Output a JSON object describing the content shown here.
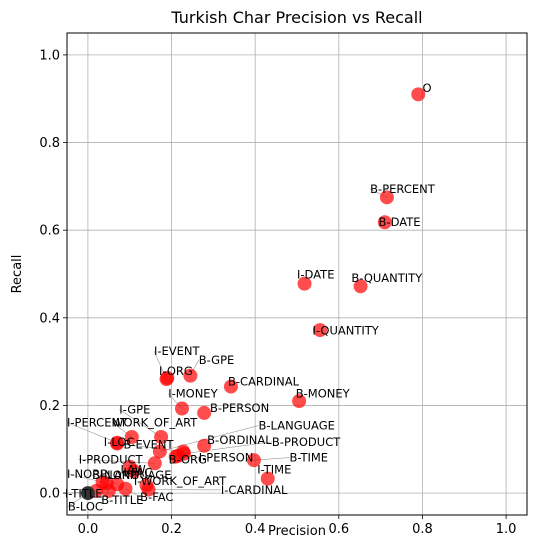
{
  "chart_data": {
    "type": "scatter",
    "title": "Turkish Char Precision vs Recall",
    "xlabel": "Precision",
    "ylabel": "Recall",
    "xlim": [
      -0.05,
      1.05
    ],
    "ylim": [
      -0.05,
      1.05
    ],
    "xticks": [
      "0.0",
      "0.2",
      "0.4",
      "0.6",
      "0.8",
      "1.0"
    ],
    "yticks": [
      "0.0",
      "0.2",
      "0.4",
      "0.6",
      "0.8",
      "1.0"
    ],
    "grid": true,
    "legend": "none",
    "colors": {
      "point": "#ff0000",
      "point_alpha": 0.7,
      "zero_point": "#333333",
      "grid": "#b0b0b0",
      "leader": "#999999"
    },
    "points": [
      {
        "label": "O",
        "x": 0.79,
        "y": 0.91,
        "lx": 0.8,
        "ly": 0.915
      },
      {
        "label": "B-PERCENT",
        "x": 0.715,
        "y": 0.675,
        "lx": 0.675,
        "ly": 0.685
      },
      {
        "label": "B-DATE",
        "x": 0.71,
        "y": 0.618,
        "lx": 0.695,
        "ly": 0.61
      },
      {
        "label": "I-DATE",
        "x": 0.518,
        "y": 0.478,
        "lx": 0.5,
        "ly": 0.49
      },
      {
        "label": "B-QUANTITY",
        "x": 0.652,
        "y": 0.472,
        "lx": 0.63,
        "ly": 0.482
      },
      {
        "label": "I-QUANTITY",
        "x": 0.555,
        "y": 0.372,
        "lx": 0.537,
        "ly": 0.362
      },
      {
        "label": "I-EVENT",
        "x": 0.188,
        "y": 0.26,
        "lx": 0.158,
        "ly": 0.315
      },
      {
        "label": "B-GPE",
        "x": 0.245,
        "y": 0.268,
        "lx": 0.265,
        "ly": 0.295
      },
      {
        "label": "I-ORG",
        "x": 0.19,
        "y": 0.263,
        "lx": 0.17,
        "ly": 0.27
      },
      {
        "label": "B-CARDINAL",
        "x": 0.342,
        "y": 0.243,
        "lx": 0.335,
        "ly": 0.245
      },
      {
        "label": "I-MONEY",
        "x": 0.225,
        "y": 0.193,
        "lx": 0.192,
        "ly": 0.218
      },
      {
        "label": "B-MONEY",
        "x": 0.505,
        "y": 0.21,
        "lx": 0.497,
        "ly": 0.218
      },
      {
        "label": "I-GPE",
        "x": 0.175,
        "y": 0.128,
        "lx": 0.075,
        "ly": 0.182
      },
      {
        "label": "B-PERSON",
        "x": 0.278,
        "y": 0.183,
        "lx": 0.292,
        "ly": 0.185
      },
      {
        "label": "I-PERCENT",
        "x": 0.07,
        "y": 0.115,
        "lx": -0.05,
        "ly": 0.152
      },
      {
        "label": "WORK_OF_ART",
        "x": 0.105,
        "y": 0.128,
        "lx": 0.058,
        "ly": 0.152
      },
      {
        "label": "B-LANGUAGE",
        "x": 0.172,
        "y": 0.095,
        "lx": 0.408,
        "ly": 0.145
      },
      {
        "label": "I-LOC",
        "x": 0.07,
        "y": 0.113,
        "lx": 0.038,
        "ly": 0.108
      },
      {
        "label": "B-EVENT",
        "x": 0.228,
        "y": 0.095,
        "lx": 0.085,
        "ly": 0.102
      },
      {
        "label": "B-ORDINAL",
        "x": 0.278,
        "y": 0.108,
        "lx": 0.285,
        "ly": 0.112
      },
      {
        "label": "B-PRODUCT",
        "x": 0.23,
        "y": 0.09,
        "lx": 0.44,
        "ly": 0.108
      },
      {
        "label": "B-ORG",
        "x": 0.21,
        "y": 0.083,
        "lx": 0.193,
        "ly": 0.068
      },
      {
        "label": "I-PERSON",
        "x": 0.215,
        "y": 0.085,
        "lx": 0.265,
        "ly": 0.072
      },
      {
        "label": "B-TIME",
        "x": 0.397,
        "y": 0.075,
        "lx": 0.482,
        "ly": 0.072
      },
      {
        "label": "I-PRODUCT",
        "x": 0.16,
        "y": 0.068,
        "lx": -0.022,
        "ly": 0.068
      },
      {
        "label": "I-TIME",
        "x": 0.43,
        "y": 0.033,
        "lx": 0.405,
        "ly": 0.045
      },
      {
        "label": "LAW",
        "x": 0.1,
        "y": 0.06,
        "lx": 0.078,
        "ly": 0.045
      },
      {
        "label": "I-FAC",
        "x": 0.11,
        "y": 0.05,
        "lx": 0.085,
        "ly": 0.038
      },
      {
        "label": "I-NORP",
        "x": 0.035,
        "y": 0.025,
        "lx": -0.05,
        "ly": 0.035
      },
      {
        "label": "B-NORP",
        "x": 0.045,
        "y": 0.022,
        "lx": 0.01,
        "ly": 0.032
      },
      {
        "label": "I-LANGUAGE",
        "x": 0.07,
        "y": 0.02,
        "lx": 0.028,
        "ly": 0.032
      },
      {
        "label": "I-WORK_OF_ART",
        "x": 0.14,
        "y": 0.018,
        "lx": 0.11,
        "ly": 0.018
      },
      {
        "label": "I-CARDINAL",
        "x": 0.145,
        "y": 0.008,
        "lx": 0.318,
        "ly": -0.002
      },
      {
        "label": "I-TITLE",
        "x": 0.02,
        "y": 0.005,
        "lx": -0.055,
        "ly": -0.01
      },
      {
        "label": "B-FAC",
        "x": 0.09,
        "y": 0.01,
        "lx": 0.125,
        "ly": -0.018
      },
      {
        "label": "B-TITLE",
        "x": 0.05,
        "y": 0.005,
        "lx": 0.032,
        "ly": -0.025
      },
      {
        "label": "B-LOC",
        "x": 0.0,
        "y": 0.0,
        "lx": -0.048,
        "ly": -0.04
      }
    ]
  }
}
